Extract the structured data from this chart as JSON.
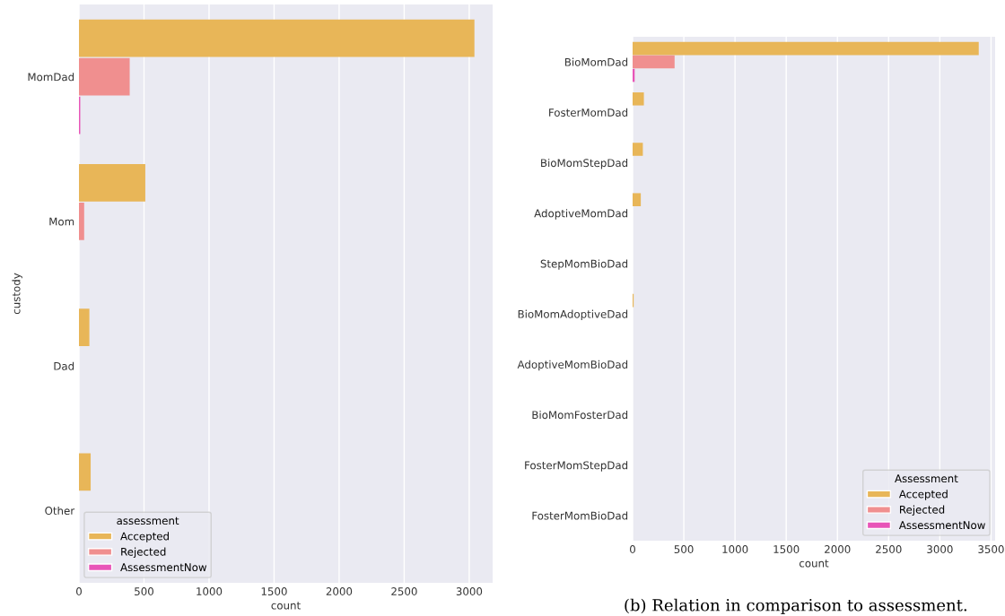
{
  "chart_data": [
    {
      "type": "bar",
      "orientation": "horizontal",
      "ylabel": "custody",
      "xlabel": "count",
      "legend_title": "assessment",
      "legend": "bottom left",
      "grid": "x",
      "categories": [
        "MomDad",
        "Mom",
        "Dad",
        "Other"
      ],
      "xlim": [
        0,
        3180
      ],
      "xticks": [
        0,
        500,
        1000,
        1500,
        2000,
        2500,
        3000
      ],
      "series": [
        {
          "name": "Accepted",
          "color": "#e8b658",
          "values": [
            3040,
            510,
            80,
            90
          ]
        },
        {
          "name": "Rejected",
          "color": "#f08f8f",
          "values": [
            390,
            40,
            null,
            null
          ]
        },
        {
          "name": "AssessmentNow",
          "color": "#e855b8",
          "values": [
            10,
            null,
            null,
            null
          ]
        }
      ]
    },
    {
      "type": "bar",
      "orientation": "horizontal",
      "xlabel": "count",
      "legend_title": "Assessment",
      "legend": "bottom right",
      "grid": "x",
      "annotations": [
        "(b) Relation in comparison to assessment."
      ],
      "categories": [
        "BioMomDad",
        "FosterMomDad",
        "BioMomStepDad",
        "AdoptiveMomDad",
        "StepMomBioDad",
        "BioMomAdoptiveDad",
        "AdoptiveMomBioDad",
        "BioMomFosterDad",
        "FosterMomStepDad",
        "FosterMomBioDad"
      ],
      "xlim": [
        0,
        3540
      ],
      "xticks": [
        0,
        500,
        1000,
        1500,
        2000,
        2500,
        3000,
        3500
      ],
      "series": [
        {
          "name": "Accepted",
          "color": "#e8b658",
          "values": [
            3380,
            110,
            100,
            80,
            null,
            10,
            null,
            null,
            null,
            null
          ]
        },
        {
          "name": "Rejected",
          "color": "#f08f8f",
          "values": [
            410,
            null,
            null,
            null,
            null,
            null,
            null,
            null,
            null,
            null
          ]
        },
        {
          "name": "AssessmentNow",
          "color": "#e855b8",
          "values": [
            20,
            null,
            null,
            null,
            null,
            null,
            null,
            null,
            null,
            null
          ]
        }
      ]
    }
  ]
}
